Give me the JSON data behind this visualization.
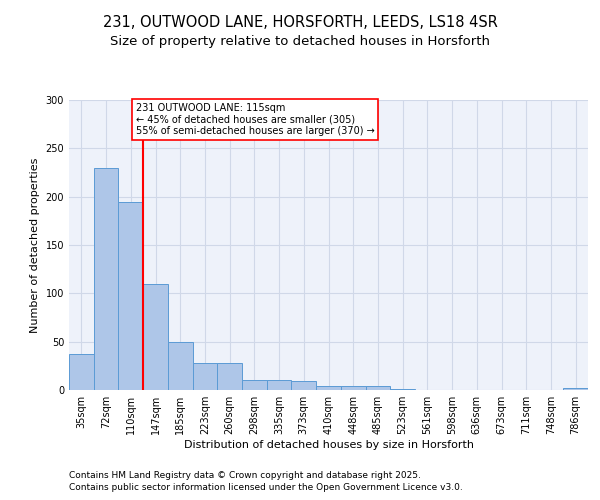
{
  "title_line1": "231, OUTWOOD LANE, HORSFORTH, LEEDS, LS18 4SR",
  "title_line2": "Size of property relative to detached houses in Horsforth",
  "xlabel": "Distribution of detached houses by size in Horsforth",
  "ylabel": "Number of detached properties",
  "categories": [
    "35sqm",
    "72sqm",
    "110sqm",
    "147sqm",
    "185sqm",
    "223sqm",
    "260sqm",
    "298sqm",
    "335sqm",
    "373sqm",
    "410sqm",
    "448sqm",
    "485sqm",
    "523sqm",
    "561sqm",
    "598sqm",
    "636sqm",
    "673sqm",
    "711sqm",
    "748sqm",
    "786sqm"
  ],
  "values": [
    37,
    230,
    195,
    110,
    50,
    28,
    28,
    10,
    10,
    9,
    4,
    4,
    4,
    1,
    0,
    0,
    0,
    0,
    0,
    0,
    2
  ],
  "bar_color": "#aec6e8",
  "bar_edge_color": "#5b9bd5",
  "grid_color": "#d0d8e8",
  "background_color": "#eef2fa",
  "vline_x_index": 2,
  "vline_color": "red",
  "annotation_text": "231 OUTWOOD LANE: 115sqm\n← 45% of detached houses are smaller (305)\n55% of semi-detached houses are larger (370) →",
  "annotation_box_color": "white",
  "annotation_box_edge": "red",
  "ylim": [
    0,
    300
  ],
  "yticks": [
    0,
    50,
    100,
    150,
    200,
    250,
    300
  ],
  "footer_line1": "Contains HM Land Registry data © Crown copyright and database right 2025.",
  "footer_line2": "Contains public sector information licensed under the Open Government Licence v3.0.",
  "title_fontsize": 10.5,
  "subtitle_fontsize": 9.5,
  "axis_label_fontsize": 8,
  "tick_fontsize": 7,
  "footer_fontsize": 6.5,
  "annotation_fontsize": 7
}
